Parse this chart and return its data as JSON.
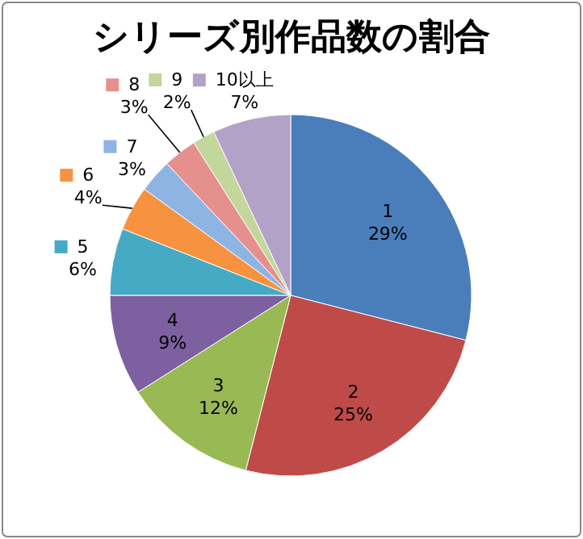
{
  "chart_data": {
    "type": "pie",
    "title": "シリーズ別作品数の割合",
    "categories": [
      "1",
      "2",
      "3",
      "4",
      "5",
      "6",
      "7",
      "8",
      "9",
      "10以上"
    ],
    "values": [
      29,
      25,
      12,
      9,
      6,
      4,
      3,
      3,
      2,
      7
    ],
    "value_labels": [
      "29%",
      "25%",
      "12%",
      "9%",
      "6%",
      "4%",
      "3%",
      "3%",
      "2%",
      "7%"
    ],
    "colors": [
      "#4a7ebb",
      "#be4b48",
      "#98b954",
      "#7d60a0",
      "#46aac5",
      "#f69240",
      "#8eb4e3",
      "#e6908e",
      "#c3d69b",
      "#b3a2c7"
    ],
    "legend": "top left"
  }
}
